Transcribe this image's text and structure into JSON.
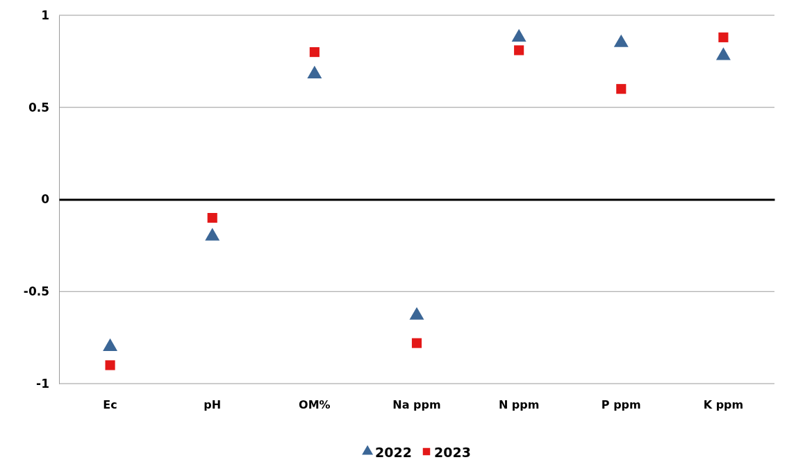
{
  "chart_data": {
    "type": "scatter",
    "categories": [
      "Ec",
      "pH",
      "OM%",
      "Na ppm",
      "N ppm",
      "P ppm",
      "K ppm"
    ],
    "series": [
      {
        "name": "2022",
        "color": "#3b6696",
        "marker": "triangle",
        "values": [
          -0.8,
          -0.2,
          0.68,
          -0.63,
          0.88,
          0.85,
          0.78
        ]
      },
      {
        "name": "2023",
        "color": "#e31818",
        "marker": "square",
        "values": [
          -0.9,
          -0.1,
          0.8,
          -0.78,
          0.81,
          0.6,
          0.88
        ]
      }
    ],
    "ylim": [
      -1,
      1
    ],
    "yticks": [
      -1,
      -0.5,
      0,
      0.5,
      1
    ],
    "grid": "y",
    "legend": "bottom"
  }
}
